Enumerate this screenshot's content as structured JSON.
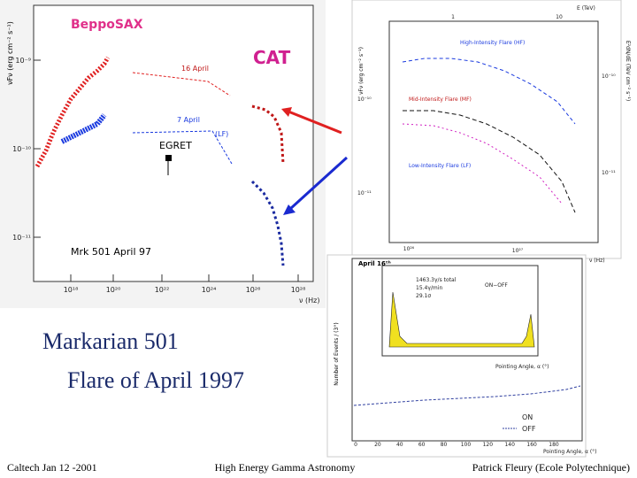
{
  "slide": {
    "title_lines": [
      "Markarian 501",
      "Flare of April 1997"
    ],
    "footer": {
      "left": "Caltech Jan 12 -2001",
      "center": "High Energy Gamma Astronomy",
      "right": "Patrick Fleury (Ecole Polytechnique)"
    }
  },
  "sed_plot": {
    "instrument_label": "BeppoSAX",
    "cat_label": "CAT",
    "date_labels": [
      "16 April",
      "7 April",
      "(LF)"
    ],
    "egret_label": "EGRET",
    "source_label": "Mrk 501 April 97",
    "y_axis_label": "νFν (erg cm⁻² s⁻¹)",
    "y_ticks": [
      "10⁻⁹",
      "10⁻¹⁰",
      "10⁻¹¹"
    ],
    "x_ticks": [
      "10¹⁸",
      "10²⁰",
      "10²²",
      "10²⁴",
      "10²⁶",
      "10²⁸"
    ],
    "x_axis_label": "ν (Hz)"
  },
  "cat_spectrum_plot": {
    "top_axis_label": "E (TeV)",
    "top_ticks": [
      "1",
      "10"
    ],
    "y_axis_label": "νFν (erg cm⁻² s⁻¹)",
    "right_axis_label": "E²dN/dE (TeV cm⁻² s⁻¹)",
    "series_labels": [
      "High-Intensity Flare (HF)",
      "Mid-Intensity Flare (MF)",
      "Low-Intensity Flare (LF)"
    ],
    "y_ticks": [
      "10⁻¹⁰",
      "10⁻¹¹"
    ],
    "right_ticks": [
      "10⁻¹⁰",
      "10⁻¹¹"
    ],
    "x_ticks": [
      "10²⁶",
      "10²⁷"
    ],
    "x_axis_label": "ν (Hz)"
  },
  "alpha_plot": {
    "title": "April 16ᵗʰ",
    "inset_stats": [
      "1463.3γ/s total",
      "15.4γ/min",
      "29.1σ"
    ],
    "inset_label": "ON−OFF",
    "inset_x_label": "Pointing Angle, α (°)",
    "y_axis_label": "Number of Events / (3°)",
    "legend": [
      "ON",
      "OFF"
    ],
    "x_ticks": [
      "0",
      "20",
      "40",
      "60",
      "80",
      "100",
      "120",
      "140",
      "160",
      "180"
    ],
    "x_axis_label": "Pointing Angle, α (°)"
  }
}
